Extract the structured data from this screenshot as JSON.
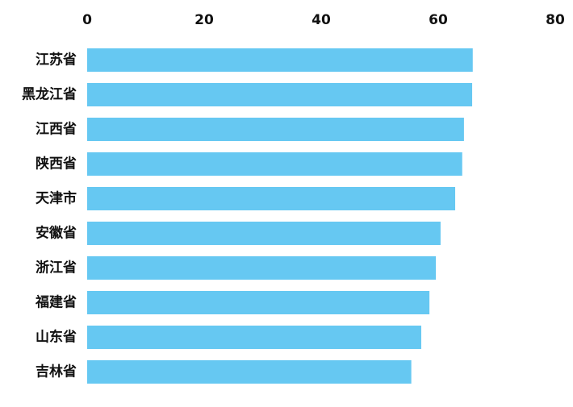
{
  "chart_data": {
    "type": "bar",
    "orientation": "horizontal",
    "categories": [
      "江苏省",
      "黑龙江省",
      "江西省",
      "陕西省",
      "天津市",
      "安徽省",
      "浙江省",
      "福建省",
      "山东省",
      "吉林省"
    ],
    "values": [
      65.9,
      65.8,
      64.4,
      64.1,
      62.9,
      60.4,
      59.6,
      58.5,
      57.1,
      55.4
    ],
    "color": "#66c8f2",
    "xlim": [
      0,
      80
    ],
    "xticks": [
      0,
      20,
      40,
      60,
      80
    ],
    "grid": false
  }
}
